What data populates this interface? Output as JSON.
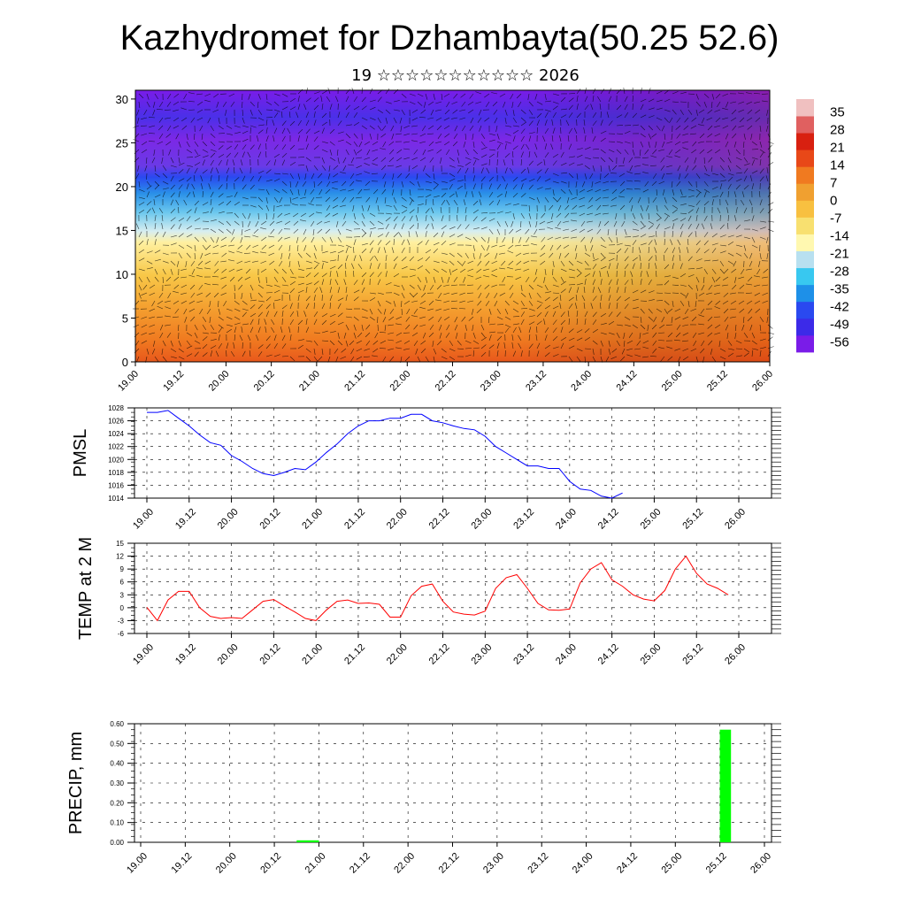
{
  "page": {
    "title": "Kazhydromet for Dzhambayta(50.25 52.6)",
    "subtitle": "19 ☆☆☆☆☆☆☆☆☆☆☆ 2026"
  },
  "colors": {
    "pmsl_line": "#0000ff",
    "temp_line": "#ff0000",
    "precip_bar": "#00ff00",
    "palette": [
      "#7a1ce8",
      "#3c2ae8",
      "#2a49f0",
      "#1e90e8",
      "#38c8f0",
      "#b8e0f0",
      "#fff8b0",
      "#f8e070",
      "#f8c040",
      "#f0a030",
      "#f07a20",
      "#e84818",
      "#d82010",
      "#e06060",
      "#f0c0c0"
    ]
  },
  "chart_data": [
    {
      "type": "heatmap",
      "name": "wind-temperature cross-section",
      "title": "Kazhydromet for Dzhambayta(50.25 52.6)",
      "x_tick_labels": [
        "19.00",
        "19.12",
        "20.00",
        "20.12",
        "21.00",
        "21.12",
        "22.00",
        "22.12",
        "23.00",
        "23.12",
        "24.00",
        "24.12",
        "25.00",
        "25.12",
        "26.00"
      ],
      "y_tick_labels": [
        "0",
        "5",
        "10",
        "15",
        "20",
        "25",
        "30"
      ],
      "ylim": [
        0,
        31
      ],
      "colorbar_labels": [
        "35",
        "28",
        "21",
        "14",
        "7",
        "0",
        "-7",
        "-14",
        "-21",
        "-28",
        "-35",
        "-42",
        "-49",
        "-56"
      ],
      "colorbar_range": [
        -60,
        40
      ],
      "overlay": "wind barbs"
    },
    {
      "type": "line",
      "name": "pmsl",
      "ylabel": "PMSL",
      "ylim": [
        1014,
        1028
      ],
      "y_tick_labels": [
        "1028",
        "1026",
        "1024",
        "1022",
        "1020",
        "1018",
        "1016",
        "1014"
      ],
      "x_tick_labels": [
        "19.00",
        "19.12",
        "20.00",
        "20.12",
        "21.00",
        "21.12",
        "22.00",
        "22.12",
        "23.00",
        "23.12",
        "24.00",
        "24.12",
        "25.00",
        "25.12",
        "26.00"
      ],
      "x_step_hours": 3,
      "values": [
        1027.3,
        1027.3,
        1027.6,
        1026.4,
        1025.2,
        1023.8,
        1022.6,
        1022.2,
        1020.6,
        1019.7,
        1018.6,
        1017.8,
        1017.5,
        1018.0,
        1018.6,
        1018.4,
        1019.6,
        1021.1,
        1022.4,
        1024.0,
        1025.2,
        1026.0,
        1026.0,
        1026.4,
        1026.4,
        1027.0,
        1027.0,
        1026.0,
        1025.7,
        1025.2,
        1024.8,
        1024.6,
        1023.6,
        1022.0,
        1021.0,
        1020.0,
        1019.0,
        1019.0,
        1018.6,
        1018.6,
        1016.6,
        1015.4,
        1015.2,
        1014.3,
        1014.0,
        1014.8
      ]
    },
    {
      "type": "line",
      "name": "temp-2m",
      "ylabel": "TEMP at 2 M",
      "ylim": [
        -6,
        15
      ],
      "y_tick_labels": [
        "15",
        "12",
        "9",
        "6",
        "3",
        "0",
        "-3",
        "-6"
      ],
      "x_tick_labels": [
        "19.00",
        "19.12",
        "20.00",
        "20.12",
        "21.00",
        "21.12",
        "22.00",
        "22.12",
        "23.00",
        "23.12",
        "24.00",
        "24.12",
        "25.00",
        "25.12",
        "26.00"
      ],
      "x_step_hours": 3,
      "values": [
        0.1,
        -3.0,
        1.8,
        3.8,
        3.8,
        0.0,
        -2.0,
        -2.5,
        -2.3,
        -2.5,
        -0.5,
        1.5,
        1.9,
        0.4,
        -1.0,
        -2.5,
        -3.0,
        -0.5,
        1.5,
        1.8,
        1.0,
        1.1,
        0.8,
        -2.2,
        -2.2,
        2.8,
        5.0,
        5.5,
        1.5,
        -1.0,
        -1.5,
        -1.7,
        -0.8,
        4.5,
        7.0,
        7.7,
        4.5,
        1.0,
        -0.5,
        -0.6,
        -0.3,
        5.8,
        9.0,
        10.5,
        6.5,
        5.0,
        3.0,
        2.0,
        1.6,
        4.0,
        9.0,
        12.0,
        8.0,
        5.5,
        4.5,
        3.0
      ]
    },
    {
      "type": "bar",
      "name": "precipitation",
      "ylabel": "PRECIP, mm",
      "ylim": [
        0,
        0.6
      ],
      "y_tick_labels": [
        "0.60",
        "0.50",
        "0.40",
        "0.30",
        "0.20",
        "0.10",
        "0.00"
      ],
      "x_tick_labels": [
        "19.00",
        "19.12",
        "20.00",
        "20.12",
        "21.00",
        "21.12",
        "22.00",
        "22.12",
        "23.00",
        "23.12",
        "24.00",
        "24.12",
        "25.00",
        "25.12",
        "26.00"
      ],
      "bars": [
        {
          "start_hours": 42,
          "end_hours": 48,
          "value": 0.01
        },
        {
          "start_hours": 156,
          "end_hours": 159,
          "value": 0.57
        }
      ]
    }
  ]
}
